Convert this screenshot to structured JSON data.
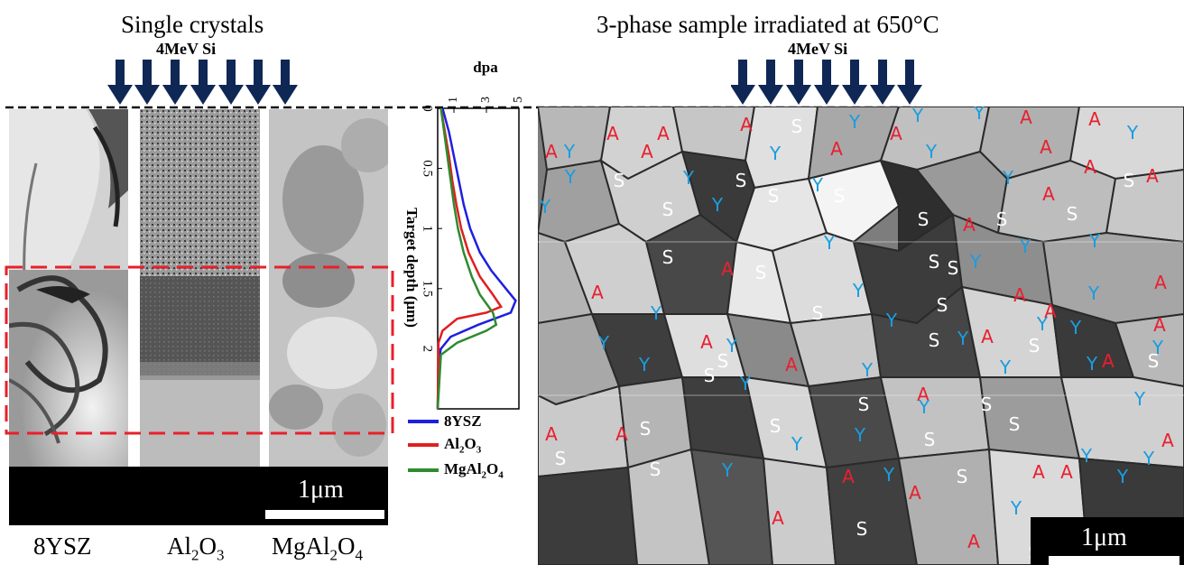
{
  "left_title": "Single crystals",
  "right_title": "3-phase sample irradiated at 650°C",
  "beam_label_left": "4MeV Si",
  "beam_label_right": "4MeV Si",
  "crystal_labels": {
    "ysz": "8YSZ",
    "al_base": "Al",
    "al_sub1": "2",
    "al_mid": "O",
    "al_sub2": "3",
    "mg_base": "MgAl",
    "mg_sub1": "2",
    "mg_mid": "O",
    "mg_sub2": "4"
  },
  "scale_bar_left": "1μm",
  "scale_bar_right": "1μm",
  "colors": {
    "ysz_line": "#1f1fe0",
    "al2o3_line": "#e01f1f",
    "mgal2o4_line": "#2e8b2e",
    "arrow": "#0f2755",
    "dashed_roi": "#e8202a",
    "label_A": "#e82030",
    "label_Y": "#1a9de0",
    "label_S": "#ffffff"
  },
  "chart_data": {
    "type": "line",
    "title": "",
    "xlabel": "dpa",
    "ylabel": "Target depth (μm)",
    "xlim": [
      0,
      5
    ],
    "ylim": [
      0,
      2.5
    ],
    "x_ticks": [
      "1",
      "3",
      "5"
    ],
    "y_ticks": [
      "0",
      "0.5",
      "1",
      "1.5",
      "2"
    ],
    "series": [
      {
        "name": "8YSZ",
        "color": "#1f1fe0",
        "depth": [
          0,
          0.2,
          0.4,
          0.6,
          0.8,
          1.0,
          1.2,
          1.35,
          1.5,
          1.6,
          1.7,
          1.8,
          1.9,
          2.0,
          2.1,
          2.5
        ],
        "dpa": [
          0.3,
          0.7,
          1.0,
          1.3,
          1.6,
          2.0,
          2.6,
          3.3,
          4.2,
          4.8,
          4.5,
          2.5,
          0.8,
          0.2,
          0.05,
          0.0
        ]
      },
      {
        "name": "Al2O3",
        "color": "#e01f1f",
        "depth": [
          0,
          0.2,
          0.4,
          0.6,
          0.8,
          1.0,
          1.2,
          1.4,
          1.55,
          1.65,
          1.7,
          1.75,
          1.85,
          1.95,
          2.5
        ],
        "dpa": [
          0.2,
          0.45,
          0.7,
          0.9,
          1.15,
          1.45,
          1.9,
          2.6,
          3.4,
          3.9,
          3.0,
          1.2,
          0.3,
          0.05,
          0.0
        ]
      },
      {
        "name": "MgAl2O4",
        "color": "#2e8b2e",
        "depth": [
          0,
          0.2,
          0.4,
          0.6,
          0.8,
          1.0,
          1.2,
          1.4,
          1.55,
          1.7,
          1.8,
          1.85,
          1.95,
          2.05,
          2.5
        ],
        "dpa": [
          0.2,
          0.4,
          0.6,
          0.8,
          1.0,
          1.25,
          1.6,
          2.1,
          2.6,
          3.4,
          3.6,
          3.0,
          1.2,
          0.2,
          0.0
        ]
      }
    ],
    "legend": [
      "8YSZ",
      "Al2O3",
      "MgAl2O4"
    ],
    "legend_position": "bottom"
  },
  "phase_labels": [
    {
      "t": "A",
      "x": 679,
      "y": 148
    },
    {
      "t": "A",
      "x": 611,
      "y": 168
    },
    {
      "t": "Y",
      "x": 631,
      "y": 168
    },
    {
      "t": "A",
      "x": 735,
      "y": 148
    },
    {
      "t": "A",
      "x": 717,
      "y": 168
    },
    {
      "t": "A",
      "x": 827,
      "y": 138
    },
    {
      "t": "S",
      "x": 883,
      "y": 140
    },
    {
      "t": "Y",
      "x": 947,
      "y": 135
    },
    {
      "t": "Y",
      "x": 859,
      "y": 170
    },
    {
      "t": "A",
      "x": 927,
      "y": 165
    },
    {
      "t": "A",
      "x": 993,
      "y": 148
    },
    {
      "t": "Y",
      "x": 1017,
      "y": 128
    },
    {
      "t": "Y",
      "x": 1032,
      "y": 168
    },
    {
      "t": "Y",
      "x": 1085,
      "y": 125
    },
    {
      "t": "A",
      "x": 1137,
      "y": 130
    },
    {
      "t": "A",
      "x": 1213,
      "y": 132
    },
    {
      "t": "Y",
      "x": 1255,
      "y": 147
    },
    {
      "t": "A",
      "x": 1159,
      "y": 163
    },
    {
      "t": "A",
      "x": 1208,
      "y": 185
    },
    {
      "t": "A",
      "x": 1277,
      "y": 195
    },
    {
      "t": "S",
      "x": 1251,
      "y": 200
    },
    {
      "t": "Y",
      "x": 1117,
      "y": 197
    },
    {
      "t": "A",
      "x": 1162,
      "y": 215
    },
    {
      "t": "S",
      "x": 1188,
      "y": 237
    },
    {
      "t": "Y",
      "x": 632,
      "y": 196
    },
    {
      "t": "S",
      "x": 686,
      "y": 200
    },
    {
      "t": "Y",
      "x": 763,
      "y": 197
    },
    {
      "t": "S",
      "x": 821,
      "y": 200
    },
    {
      "t": "Y",
      "x": 906,
      "y": 205
    },
    {
      "t": "S",
      "x": 930,
      "y": 217
    },
    {
      "t": "S",
      "x": 857,
      "y": 217
    },
    {
      "t": "Y",
      "x": 604,
      "y": 229
    },
    {
      "t": "Y",
      "x": 795,
      "y": 227
    },
    {
      "t": "S",
      "x": 740,
      "y": 232
    },
    {
      "t": "S",
      "x": 1023,
      "y": 243
    },
    {
      "t": "A",
      "x": 1074,
      "y": 249
    },
    {
      "t": "S",
      "x": 1110,
      "y": 243
    },
    {
      "t": "Y",
      "x": 919,
      "y": 269
    },
    {
      "t": "Y",
      "x": 1136,
      "y": 273
    },
    {
      "t": "Y",
      "x": 1213,
      "y": 267
    },
    {
      "t": "S",
      "x": 740,
      "y": 285
    },
    {
      "t": "S",
      "x": 843,
      "y": 302
    },
    {
      "t": "A",
      "x": 806,
      "y": 298
    },
    {
      "t": "S",
      "x": 1035,
      "y": 290
    },
    {
      "t": "Y",
      "x": 1081,
      "y": 290
    },
    {
      "t": "S",
      "x": 1056,
      "y": 297
    },
    {
      "t": "A",
      "x": 1130,
      "y": 327
    },
    {
      "t": "Y",
      "x": 1212,
      "y": 325
    },
    {
      "t": "A",
      "x": 1286,
      "y": 313
    },
    {
      "t": "A",
      "x": 662,
      "y": 324
    },
    {
      "t": "Y",
      "x": 951,
      "y": 322
    },
    {
      "t": "S",
      "x": 906,
      "y": 347
    },
    {
      "t": "Y",
      "x": 727,
      "y": 347
    },
    {
      "t": "Y",
      "x": 988,
      "y": 355
    },
    {
      "t": "S",
      "x": 1044,
      "y": 338
    },
    {
      "t": "Y",
      "x": 1155,
      "y": 359
    },
    {
      "t": "A",
      "x": 1164,
      "y": 345
    },
    {
      "t": "A",
      "x": 1285,
      "y": 360
    },
    {
      "t": "A",
      "x": 783,
      "y": 379
    },
    {
      "t": "S",
      "x": 1035,
      "y": 377
    },
    {
      "t": "Y",
      "x": 1067,
      "y": 375
    },
    {
      "t": "A",
      "x": 1094,
      "y": 373
    },
    {
      "t": "S",
      "x": 1146,
      "y": 383
    },
    {
      "t": "Y",
      "x": 1192,
      "y": 363
    },
    {
      "t": "Y",
      "x": 669,
      "y": 380
    },
    {
      "t": "Y",
      "x": 811,
      "y": 383
    },
    {
      "t": "Y",
      "x": 1283,
      "y": 385
    },
    {
      "t": "S",
      "x": 801,
      "y": 400
    },
    {
      "t": "A",
      "x": 877,
      "y": 404
    },
    {
      "t": "Y",
      "x": 961,
      "y": 410
    },
    {
      "t": "Y",
      "x": 1114,
      "y": 407
    },
    {
      "t": "Y",
      "x": 1210,
      "y": 403
    },
    {
      "t": "S",
      "x": 1278,
      "y": 400
    },
    {
      "t": "Y",
      "x": 714,
      "y": 404
    },
    {
      "t": "S",
      "x": 786,
      "y": 416
    },
    {
      "t": "Y",
      "x": 826,
      "y": 425
    },
    {
      "t": "A",
      "x": 1228,
      "y": 400
    },
    {
      "t": "A",
      "x": 1023,
      "y": 437
    },
    {
      "t": "Y",
      "x": 1263,
      "y": 442
    },
    {
      "t": "S",
      "x": 957,
      "y": 448
    },
    {
      "t": "Y",
      "x": 1024,
      "y": 451
    },
    {
      "t": "S",
      "x": 1093,
      "y": 448
    },
    {
      "t": "S",
      "x": 715,
      "y": 475
    },
    {
      "t": "A",
      "x": 689,
      "y": 481
    },
    {
      "t": "A",
      "x": 611,
      "y": 481
    },
    {
      "t": "S",
      "x": 859,
      "y": 472
    },
    {
      "t": "S",
      "x": 1124,
      "y": 470
    },
    {
      "t": "Y",
      "x": 953,
      "y": 482
    },
    {
      "t": "S",
      "x": 1030,
      "y": 487
    },
    {
      "t": "Y",
      "x": 883,
      "y": 492
    },
    {
      "t": "A",
      "x": 1294,
      "y": 488
    },
    {
      "t": "S",
      "x": 621,
      "y": 508
    },
    {
      "t": "S",
      "x": 726,
      "y": 520
    },
    {
      "t": "Y",
      "x": 806,
      "y": 521
    },
    {
      "t": "Y",
      "x": 1204,
      "y": 505
    },
    {
      "t": "Y",
      "x": 1273,
      "y": 508
    },
    {
      "t": "Y",
      "x": 1244,
      "y": 528
    },
    {
      "t": "A",
      "x": 940,
      "y": 528
    },
    {
      "t": "Y",
      "x": 985,
      "y": 526
    },
    {
      "t": "S",
      "x": 1066,
      "y": 528
    },
    {
      "t": "A",
      "x": 1151,
      "y": 523
    },
    {
      "t": "A",
      "x": 1182,
      "y": 523
    },
    {
      "t": "A",
      "x": 1014,
      "y": 546
    },
    {
      "t": "Y",
      "x": 1126,
      "y": 563
    },
    {
      "t": "A",
      "x": 862,
      "y": 574
    },
    {
      "t": "S",
      "x": 955,
      "y": 586
    },
    {
      "t": "A",
      "x": 1079,
      "y": 600
    },
    {
      "t": "S",
      "x": 1146,
      "y": 612
    }
  ]
}
